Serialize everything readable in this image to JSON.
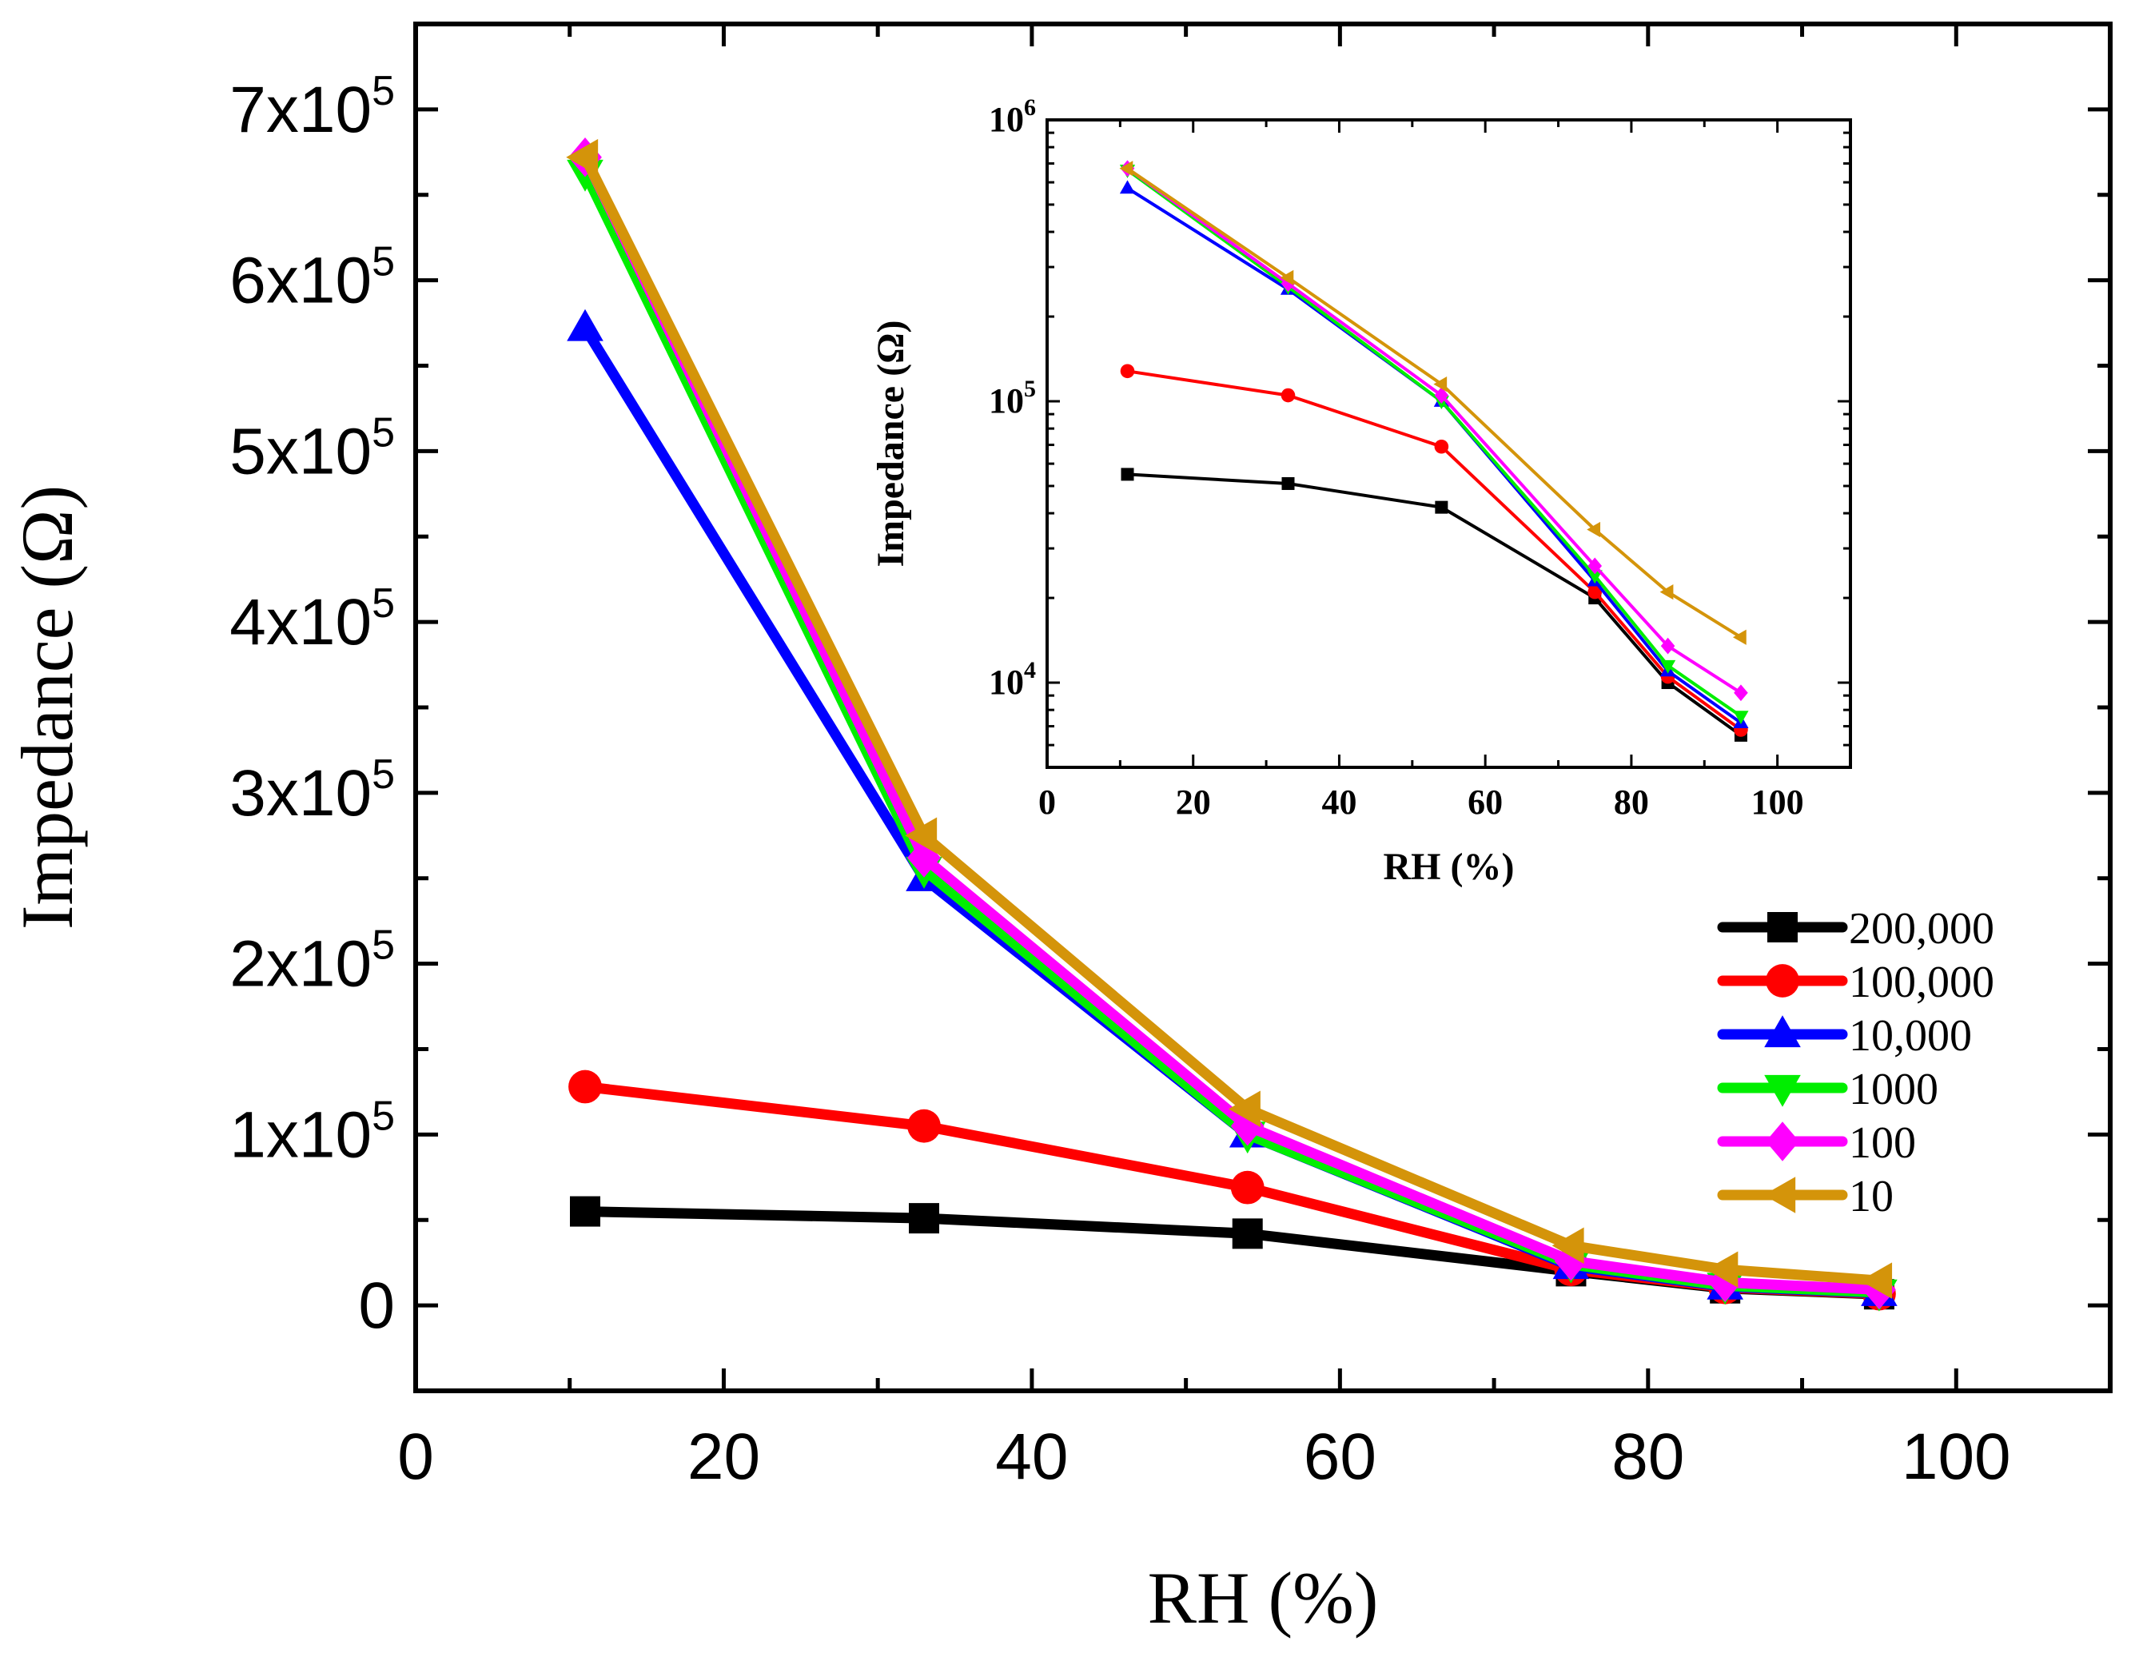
{
  "chart_data": [
    {
      "id": "main",
      "type": "line",
      "x": [
        11,
        33,
        54,
        75,
        85,
        95
      ],
      "xlabel": "RH (%)",
      "ylabel": "Impedance (Ω)",
      "xlim": [
        0,
        110
      ],
      "ylim": [
        -50000,
        750000
      ],
      "xticks": [
        0,
        20,
        40,
        60,
        80,
        100
      ],
      "xtick_labels": [
        "0",
        "20",
        "40",
        "60",
        "80",
        "100"
      ],
      "yticks": [
        0,
        100000,
        200000,
        300000,
        400000,
        500000,
        600000,
        700000
      ],
      "ytick_labels": [
        {
          "mant": "0",
          "exp": ""
        },
        {
          "mant": "1x10",
          "exp": "5"
        },
        {
          "mant": "2x10",
          "exp": "5"
        },
        {
          "mant": "3x10",
          "exp": "5"
        },
        {
          "mant": "4x10",
          "exp": "5"
        },
        {
          "mant": "5x10",
          "exp": "5"
        },
        {
          "mant": "6x10",
          "exp": "5"
        },
        {
          "mant": "7x10",
          "exp": "5"
        }
      ],
      "grid": false,
      "legend_position": "right",
      "series": [
        {
          "name": "200,000",
          "color": "#000000",
          "marker": "square",
          "values": [
            55000,
            51000,
            42000,
            20000,
            10000,
            6500
          ]
        },
        {
          "name": "100,000",
          "color": "#ff0000",
          "marker": "circle",
          "values": [
            128000,
            105000,
            69000,
            21000,
            10500,
            6800
          ]
        },
        {
          "name": "10,000",
          "color": "#0000ff",
          "marker": "triangle-up",
          "values": [
            572000,
            250000,
            100000,
            23000,
            11000,
            7200
          ]
        },
        {
          "name": "1000",
          "color": "#00ee00",
          "marker": "triangle-down",
          "values": [
            663000,
            255000,
            100000,
            24000,
            11500,
            7600
          ]
        },
        {
          "name": "100",
          "color": "#ff00ff",
          "marker": "diamond",
          "values": [
            672000,
            262000,
            105000,
            26000,
            13500,
            9200
          ]
        },
        {
          "name": "10",
          "color": "#d4940a",
          "marker": "triangle-left",
          "values": [
            672000,
            275000,
            115000,
            35000,
            21000,
            14500
          ]
        }
      ]
    },
    {
      "id": "inset",
      "type": "line",
      "yscale": "log",
      "x": [
        11,
        33,
        54,
        75,
        85,
        95
      ],
      "xlabel": "RH (%)",
      "ylabel": "Impedance (Ω)",
      "xlim": [
        0,
        110
      ],
      "ylim": [
        5000,
        1000000
      ],
      "xticks": [
        0,
        20,
        40,
        60,
        80,
        100
      ],
      "xtick_labels": [
        "0",
        "20",
        "40",
        "60",
        "80",
        "100"
      ],
      "yticks": [
        10000,
        100000,
        1000000
      ],
      "ytick_labels": [
        {
          "mant": "10",
          "exp": "4"
        },
        {
          "mant": "10",
          "exp": "5"
        },
        {
          "mant": "10",
          "exp": "6"
        }
      ],
      "grid": false,
      "series": [
        {
          "name": "200,000",
          "color": "#000000",
          "marker": "square",
          "values": [
            55000,
            51000,
            42000,
            20000,
            10000,
            6500
          ]
        },
        {
          "name": "100,000",
          "color": "#ff0000",
          "marker": "circle",
          "values": [
            128000,
            105000,
            69000,
            21000,
            10500,
            6800
          ]
        },
        {
          "name": "10,000",
          "color": "#0000ff",
          "marker": "triangle-up",
          "values": [
            572000,
            250000,
            100000,
            23000,
            11000,
            7200
          ]
        },
        {
          "name": "1000",
          "color": "#00ee00",
          "marker": "triangle-down",
          "values": [
            663000,
            255000,
            100000,
            24000,
            11500,
            7600
          ]
        },
        {
          "name": "100",
          "color": "#ff00ff",
          "marker": "diamond",
          "values": [
            672000,
            262000,
            105000,
            26000,
            13500,
            9200
          ]
        },
        {
          "name": "10",
          "color": "#d4940a",
          "marker": "triangle-left",
          "values": [
            672000,
            275000,
            115000,
            35000,
            21000,
            14500
          ]
        }
      ]
    }
  ]
}
